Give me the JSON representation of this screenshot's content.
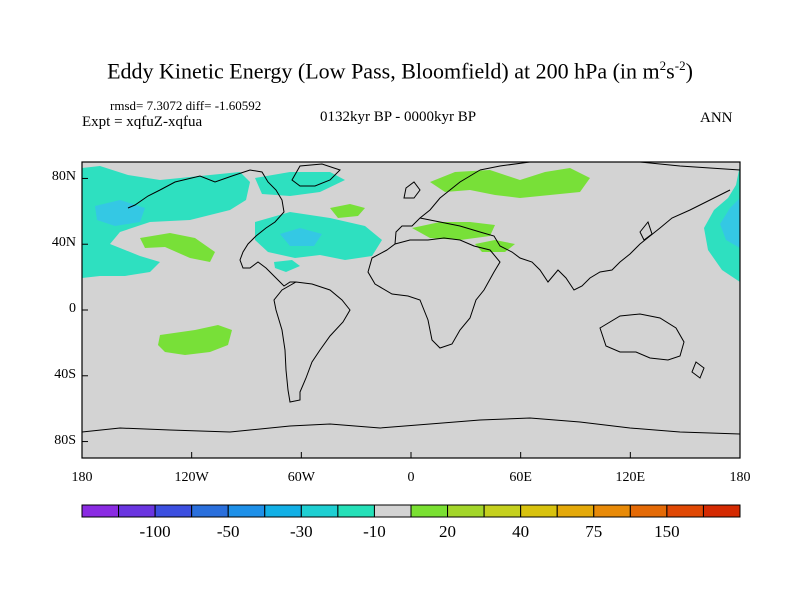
{
  "title": {
    "main": "Eddy Kinetic Energy (Low Pass, Bloomfield) at 200 hPa (in m",
    "sup1": "2",
    "mid": "s",
    "sup2": "-2",
    "end": ")"
  },
  "stats": "rmsd= 7.3072 diff= -1.60592",
  "experiment": "Expt = xqfuZ-xqfua",
  "period": "0132kyr BP - 0000kyr BP",
  "season": "ANN",
  "map": {
    "lat_labels": [
      "80N",
      "40N",
      "0",
      "40S",
      "80S"
    ],
    "lat_values": [
      80,
      40,
      0,
      -40,
      -80
    ],
    "lon_labels": [
      "180",
      "120W",
      "60W",
      "0",
      "60E",
      "120E",
      "180"
    ],
    "lon_values": [
      -180,
      -120,
      -60,
      0,
      60,
      120,
      180
    ],
    "lat_range": [
      -90,
      90
    ],
    "lon_range": [
      -180,
      180
    ],
    "land_fill": "#d3d3d3",
    "coast_color": "#000000"
  },
  "colorbar": {
    "colors": [
      "#8a2be2",
      "#6a35e0",
      "#3c4fe0",
      "#2a6fdc",
      "#1e90e8",
      "#12b0e6",
      "#1ecfd2",
      "#25e0b8",
      "#d3d3d3",
      "#7ae032",
      "#a3d62a",
      "#c5d01e",
      "#d8c20e",
      "#e4a90a",
      "#e88a08",
      "#e46a06",
      "#e04804",
      "#d42a02"
    ],
    "labels": [
      "-100",
      "-50",
      "-30",
      "-10",
      "20",
      "40",
      "75",
      "150"
    ],
    "label_boundaries": [
      2,
      4,
      6,
      8,
      10,
      12,
      14,
      16
    ]
  }
}
